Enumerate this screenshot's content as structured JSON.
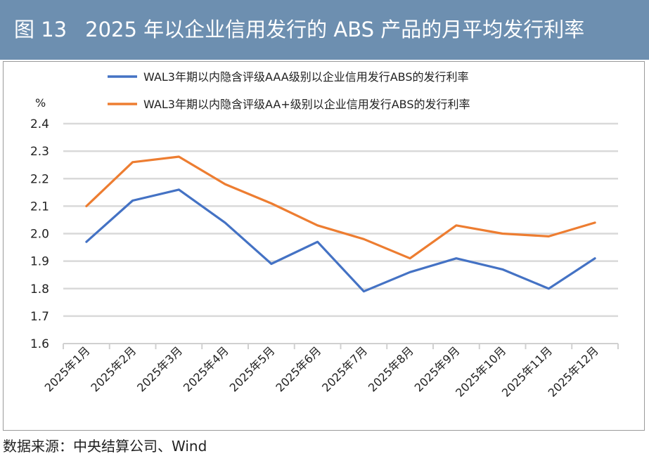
{
  "figure_label": "图 13",
  "figure_title": "2025 年以企业信用发行的 ABS 产品的月平均发行利率",
  "source_text": "数据来源：中央结算公司、Wind",
  "chart_data": {
    "type": "line",
    "title": "2025 年以企业信用发行的 ABS 产品的月平均发行利率",
    "ylabel": "%",
    "xlabel": "",
    "ylim": [
      1.6,
      2.4
    ],
    "yticks": [
      1.6,
      1.7,
      1.8,
      1.9,
      2.0,
      2.1,
      2.2,
      2.3,
      2.4
    ],
    "ytick_labels": [
      "1.6",
      "1.7",
      "1.8",
      "1.9",
      "2.0",
      "2.1",
      "2.2",
      "2.3",
      "2.4"
    ],
    "grid": true,
    "legend_position": "top",
    "categories": [
      "2025年1月",
      "2025年2月",
      "2025年3月",
      "2025年4月",
      "2025年5月",
      "2025年6月",
      "2025年7月",
      "2025年8月",
      "2025年9月",
      "2025年10月",
      "2025年11月",
      "2025年12月"
    ],
    "series": [
      {
        "name": "WAL3年期以内隐含评级AAA级别以企业信用发行ABS的发行利率",
        "color": "#4472c4",
        "values": [
          1.97,
          2.12,
          2.16,
          2.04,
          1.89,
          1.97,
          1.79,
          1.86,
          1.91,
          1.87,
          1.8,
          1.91
        ]
      },
      {
        "name": "WAL3年期以内隐含评级AA+级别以企业信用发行ABS的发行利率",
        "color": "#ed7d31",
        "values": [
          2.1,
          2.26,
          2.28,
          2.18,
          2.11,
          2.03,
          1.98,
          1.91,
          2.03,
          2.0,
          1.99,
          2.04
        ]
      }
    ]
  }
}
